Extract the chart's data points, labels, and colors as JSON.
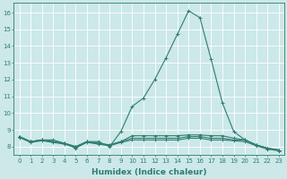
{
  "xlabel": "Humidex (Indice chaleur)",
  "bg_color": "#cce8e8",
  "grid_color": "#b8d8d8",
  "line_color": "#2e7d70",
  "xlim": [
    -0.5,
    23.5
  ],
  "ylim": [
    7.5,
    16.6
  ],
  "x_ticks": [
    0,
    1,
    2,
    3,
    4,
    5,
    6,
    7,
    8,
    9,
    10,
    11,
    12,
    13,
    14,
    15,
    16,
    17,
    18,
    19,
    20,
    21,
    22,
    23
  ],
  "y_ticks": [
    8,
    9,
    10,
    11,
    12,
    13,
    14,
    15,
    16
  ],
  "series": [
    [
      8.6,
      8.3,
      8.4,
      8.4,
      8.2,
      7.9,
      8.3,
      8.3,
      8.0,
      8.9,
      10.4,
      10.9,
      12.0,
      13.3,
      14.7,
      16.1,
      15.7,
      13.2,
      10.6,
      8.9,
      8.4,
      8.1,
      7.9,
      7.8
    ],
    [
      8.6,
      8.3,
      8.4,
      8.3,
      8.2,
      8.0,
      8.3,
      8.2,
      8.1,
      8.3,
      8.65,
      8.65,
      8.65,
      8.65,
      8.65,
      8.7,
      8.7,
      8.65,
      8.65,
      8.5,
      8.4,
      8.1,
      7.9,
      7.8
    ],
    [
      8.6,
      8.3,
      8.4,
      8.3,
      8.2,
      8.0,
      8.3,
      8.2,
      8.1,
      8.3,
      8.5,
      8.5,
      8.5,
      8.5,
      8.5,
      8.6,
      8.6,
      8.5,
      8.5,
      8.4,
      8.4,
      8.1,
      7.9,
      7.8
    ],
    [
      8.55,
      8.25,
      8.35,
      8.25,
      8.15,
      7.95,
      8.25,
      8.15,
      8.05,
      8.25,
      8.4,
      8.4,
      8.4,
      8.4,
      8.4,
      8.5,
      8.5,
      8.4,
      8.4,
      8.35,
      8.3,
      8.05,
      7.85,
      7.75
    ]
  ],
  "marker": "+",
  "markersize": 3,
  "linewidth": 0.8,
  "tick_fontsize": 5,
  "label_fontsize": 6.5
}
